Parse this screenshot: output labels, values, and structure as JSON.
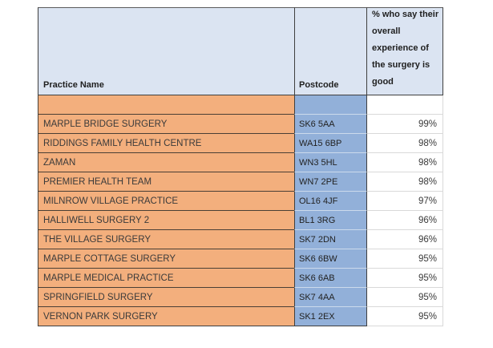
{
  "table": {
    "headers": {
      "practice": "Practice Name",
      "postcode": "Postcode",
      "percent": "% who say their overall experience of the surgery is good"
    },
    "empty_row": {
      "name": "",
      "postcode": "",
      "percent": ""
    },
    "rows": [
      {
        "name": "MARPLE BRIDGE SURGERY",
        "postcode": "SK6 5AA",
        "percent": "99%"
      },
      {
        "name": "RIDDINGS FAMILY HEALTH CENTRE",
        "postcode": "WA15 6BP",
        "percent": "98%"
      },
      {
        "name": "ZAMAN",
        "postcode": "WN3 5HL",
        "percent": "98%"
      },
      {
        "name": "PREMIER HEALTH TEAM",
        "postcode": "WN7 2PE",
        "percent": "98%"
      },
      {
        "name": "MILNROW VILLAGE PRACTICE",
        "postcode": "OL16 4JF",
        "percent": "97%"
      },
      {
        "name": "HALLIWELL SURGERY 2",
        "postcode": "BL1 3RG",
        "percent": "96%"
      },
      {
        "name": "THE VILLAGE SURGERY",
        "postcode": "SK7 2DN",
        "percent": "96%"
      },
      {
        "name": "MARPLE COTTAGE SURGERY",
        "postcode": "SK6 6BW",
        "percent": "95%"
      },
      {
        "name": "MARPLE MEDICAL PRACTICE",
        "postcode": "SK6 6AB",
        "percent": "95%"
      },
      {
        "name": "SPRINGFIELD SURGERY",
        "postcode": "SK7 4AA",
        "percent": "95%"
      },
      {
        "name": "VERNON PARK SURGERY",
        "postcode": "SK1 2EX",
        "percent": "95%"
      }
    ]
  },
  "colors": {
    "practice_fill": "#f3af7d",
    "postcode_fill": "#92b0d9",
    "header_fill": "#dbe4f2",
    "dark_border": "#3f3f3f",
    "light_border": "#d9d9d9"
  },
  "chart_data": {
    "type": "table",
    "columns": [
      "Practice Name",
      "Postcode",
      "% who say their overall experience of the surgery is good"
    ],
    "rows": [
      [
        "MARPLE BRIDGE SURGERY",
        "SK6 5AA",
        "99%"
      ],
      [
        "RIDDINGS FAMILY HEALTH CENTRE",
        "WA15 6BP",
        "98%"
      ],
      [
        "ZAMAN",
        "WN3 5HL",
        "98%"
      ],
      [
        "PREMIER HEALTH TEAM",
        "WN7 2PE",
        "98%"
      ],
      [
        "MILNROW VILLAGE PRACTICE",
        "OL16 4JF",
        "97%"
      ],
      [
        "HALLIWELL SURGERY 2",
        "BL1 3RG",
        "96%"
      ],
      [
        "THE VILLAGE SURGERY",
        "SK7 2DN",
        "96%"
      ],
      [
        "MARPLE COTTAGE SURGERY",
        "SK6 6BW",
        "95%"
      ],
      [
        "MARPLE MEDICAL PRACTICE",
        "SK6 6AB",
        "95%"
      ],
      [
        "SPRINGFIELD SURGERY",
        "SK7 4AA",
        "95%"
      ],
      [
        "VERNON PARK SURGERY",
        "SK1 2EX",
        "95%"
      ]
    ]
  }
}
